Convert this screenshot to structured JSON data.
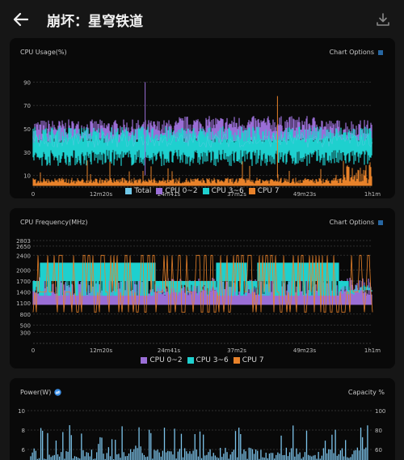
{
  "header": {
    "title": "崩坏：星穹铁道",
    "back_icon": "arrow-left-icon",
    "download_icon": "download-icon"
  },
  "cpu_usage": {
    "title": "CPU Usage(%)",
    "options_label": "Chart Options",
    "chart_data": {
      "type": "line",
      "title": "CPU Usage(%)",
      "xlabel": "",
      "ylabel": "",
      "x_ticks": [
        "0",
        "12m20s",
        "24m41s",
        "37m2s",
        "49m23s",
        "1h1m"
      ],
      "y_ticks": [
        10,
        30,
        50,
        70,
        90
      ],
      "ylim": [
        0,
        100
      ],
      "series": [
        {
          "name": "Total",
          "color": "#70c8e8",
          "typical_range": [
            30,
            50
          ]
        },
        {
          "name": "CPU 0~2",
          "color": "#9a6ed6",
          "typical_range": [
            40,
            55
          ]
        },
        {
          "name": "CPU 3~6",
          "color": "#1fd0cf",
          "typical_range": [
            25,
            50
          ]
        },
        {
          "name": "CPU 7",
          "color": "#e8822a",
          "typical_range": [
            0,
            15
          ]
        }
      ]
    }
  },
  "cpu_freq": {
    "title": "CPU Frequency(MHz)",
    "options_label": "Chart Options",
    "chart_data": {
      "type": "line",
      "title": "CPU Frequency(MHz)",
      "x_ticks": [
        "0",
        "12m20s",
        "24m41s",
        "37m2s",
        "49m23s",
        "1h1m"
      ],
      "y_ticks": [
        300,
        500,
        800,
        1100,
        1400,
        1700,
        2000,
        2400,
        2650,
        2803
      ],
      "series": [
        {
          "name": "CPU 0~2",
          "color": "#9a6ed6",
          "typical_range": [
            1100,
            1700
          ]
        },
        {
          "name": "CPU 3~6",
          "color": "#1fd0cf",
          "levels": [
            1400,
            1700,
            2200
          ]
        },
        {
          "name": "CPU 7",
          "color": "#e8822a",
          "levels": [
            800,
            2400
          ]
        }
      ]
    }
  },
  "power": {
    "title": "Power(W)",
    "info_icon": "refresh-icon",
    "right_title": "Capacity %",
    "chart_data": {
      "type": "bar",
      "left_ticks": [
        10,
        8,
        6
      ],
      "right_ticks": [
        100,
        80,
        60
      ],
      "series": [
        {
          "name": "Power",
          "color": "#7cc3ea"
        }
      ]
    }
  }
}
